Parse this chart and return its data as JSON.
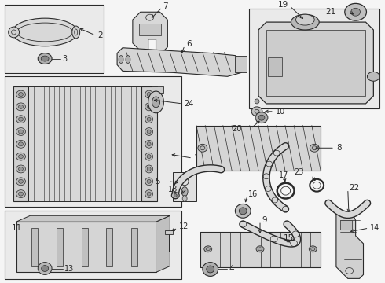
{
  "fig_width": 4.9,
  "fig_height": 3.6,
  "dpi": 100,
  "bg": "#f0f0f0",
  "lc": "#2a2a2a",
  "box_bg": "#e8e8e8"
}
